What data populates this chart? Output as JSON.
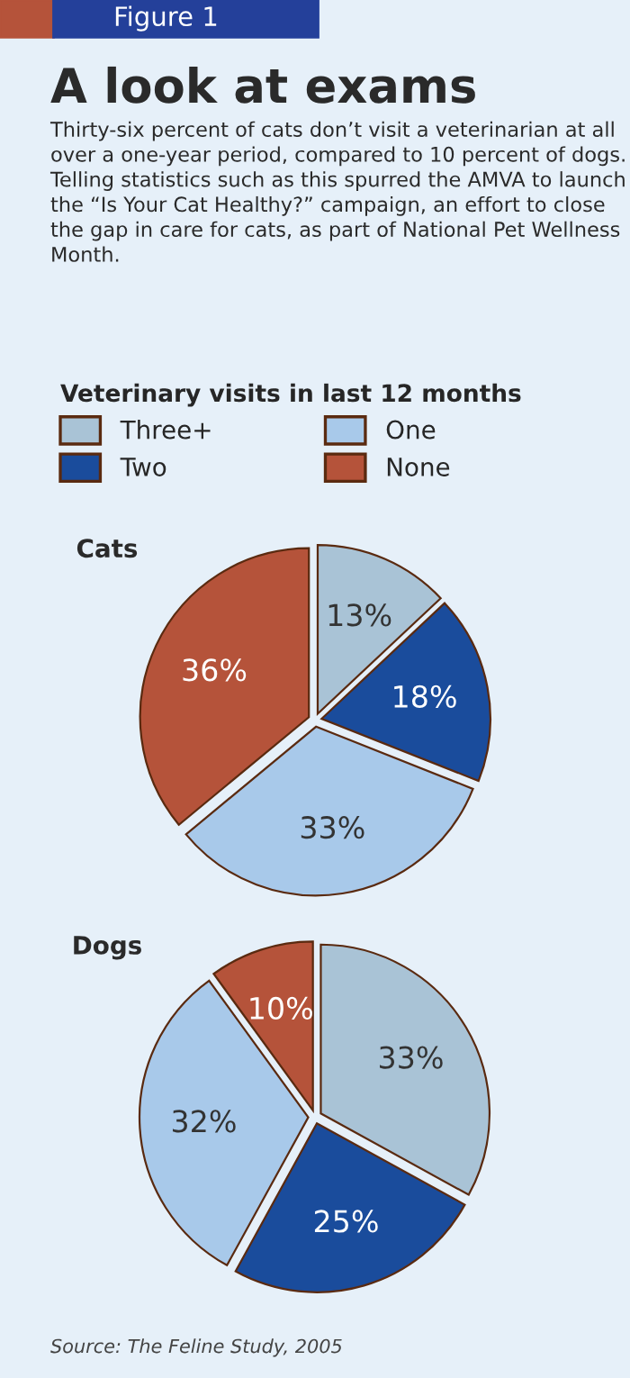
{
  "chart_data": [
    {
      "type": "pie",
      "title": "A look at exams",
      "subtitle": "Thirty-six percent of cats don’t visit a veterinarian at all over a one-year period, compared to 10 percent of dogs. Telling statistics such as this spurred the AMVA to launch the “Is Your Cat Healthy?” campaign, an effort to close the gap in care for cats, as part of National Pet Wellness Month.",
      "annotations": [
        "Figure 1",
        "Cats"
      ],
      "legend_title": "Veterinary visits in last 12 months",
      "legend": "top",
      "categories": [
        "Three+",
        "Two",
        "One",
        "None"
      ],
      "values": [
        13,
        18,
        33,
        36
      ],
      "value_labels": [
        "13%",
        "18%",
        "33%",
        "36%"
      ],
      "colors": [
        "#a9c3d6",
        "#1a4c9c",
        "#a8c9ea",
        "#b5533a"
      ]
    },
    {
      "type": "pie",
      "title": "Dogs",
      "annotations": [
        "Source: The Feline Study, 2005"
      ],
      "categories": [
        null,
        null,
        null,
        null
      ],
      "values": [
        33,
        25,
        32,
        10
      ],
      "value_labels": [
        "33%",
        "25%",
        "32%",
        "10%"
      ],
      "colors": [
        "#a9c3d6",
        "#1a4c9c",
        "#a8c9ea",
        "#b5533a"
      ]
    }
  ]
}
